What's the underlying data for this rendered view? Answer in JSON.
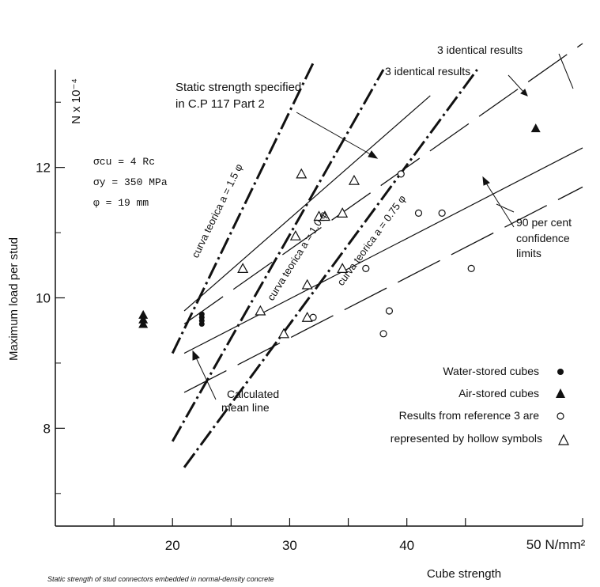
{
  "chart_data": {
    "type": "scatter",
    "xlabel": "Cube strength",
    "x_unit_label": "50 N/mm²",
    "ylabel": "Maximum load per stud",
    "y_unit_label": "N x 10⁻⁴",
    "caption": "Static strength of stud connectors embedded in normal-density concrete",
    "xlim": [
      10,
      55
    ],
    "ylim": [
      6.5,
      13.5
    ],
    "x_ticks": [
      20,
      30,
      40
    ],
    "y_ticks": [
      8,
      10,
      12
    ],
    "grid": false,
    "params": [
      "σcu = 4 Rc",
      "σy = 350 MPa",
      "φ = 19 mm"
    ],
    "theory_curves": [
      {
        "label": "curva teorica a = 1.5 φ",
        "points": [
          [
            20.0,
            9.15
          ],
          [
            32.0,
            13.6
          ]
        ]
      },
      {
        "label": "curva teorica a = 1.0 φ",
        "points": [
          [
            20.0,
            7.8
          ],
          [
            38.0,
            13.5
          ]
        ]
      },
      {
        "label": "curva teorica a = 0.75 φ",
        "points": [
          [
            21.0,
            7.4
          ],
          [
            46.0,
            13.5
          ]
        ]
      }
    ],
    "mean_line": {
      "label": "Calculated mean line",
      "points": [
        [
          21.0,
          9.15
        ],
        [
          55.0,
          12.3
        ]
      ]
    },
    "specified_line": {
      "label": "Static strength specified in C.P 117 Part 2",
      "points": [
        [
          21.0,
          9.8
        ],
        [
          42.0,
          13.1
        ]
      ]
    },
    "confidence_limits": {
      "label": "90 per cent confidence limits",
      "upper": [
        [
          21.0,
          9.6
        ],
        [
          55.0,
          13.9
        ]
      ],
      "lower": [
        [
          21.0,
          8.55
        ],
        [
          55.0,
          11.7
        ]
      ]
    },
    "series": [
      {
        "name": "Water-stored cubes",
        "marker": "filled-circle",
        "points": [
          [
            22.5,
            9.6
          ],
          [
            22.5,
            9.65
          ],
          [
            22.5,
            9.7
          ],
          [
            22.5,
            9.75
          ]
        ]
      },
      {
        "name": "Air-stored cubes",
        "marker": "filled-triangle",
        "points": [
          [
            17.5,
            9.6
          ],
          [
            17.5,
            9.67
          ],
          [
            17.5,
            9.74
          ],
          [
            51.0,
            12.6
          ]
        ]
      },
      {
        "name": "Results from reference 3 are represented by hollow symbols",
        "marker": "hollow-circle",
        "points": [
          [
            32.0,
            9.7
          ],
          [
            36.5,
            10.45
          ],
          [
            38.0,
            9.45
          ],
          [
            38.5,
            9.8
          ],
          [
            39.5,
            11.9
          ],
          [
            41.0,
            11.3
          ],
          [
            43.0,
            11.3
          ],
          [
            45.5,
            10.45
          ]
        ]
      },
      {
        "name": "represented by hollow symbols",
        "marker": "hollow-triangle",
        "points": [
          [
            26.0,
            10.45
          ],
          [
            27.5,
            9.8
          ],
          [
            29.5,
            9.45
          ],
          [
            30.5,
            10.95
          ],
          [
            31.0,
            11.9
          ],
          [
            31.5,
            10.2
          ],
          [
            31.5,
            9.7
          ],
          [
            32.5,
            11.25
          ],
          [
            33.0,
            11.25
          ],
          [
            34.5,
            10.45
          ],
          [
            34.5,
            11.3
          ],
          [
            35.5,
            11.8
          ]
        ]
      }
    ],
    "annotations": [
      "3 identical results",
      "3 identical results"
    ]
  }
}
